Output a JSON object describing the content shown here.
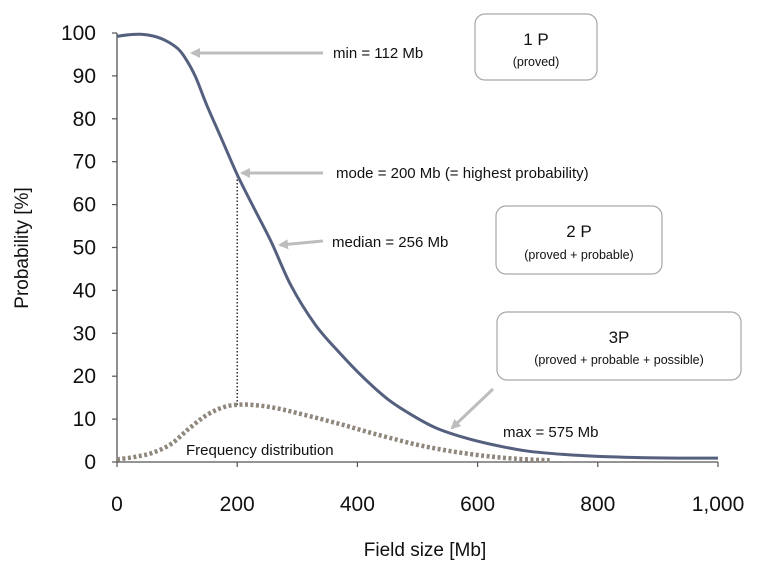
{
  "chart_data": {
    "type": "line",
    "xlabel": "Field size [Mb]",
    "ylabel": "Probability [%]",
    "xlim": [
      0,
      1000
    ],
    "ylim": [
      0,
      100
    ],
    "x_ticks": [
      "0",
      "200",
      "400",
      "600",
      "800",
      "1,000"
    ],
    "y_ticks": [
      "0",
      "10",
      "20",
      "30",
      "40",
      "50",
      "60",
      "70",
      "80",
      "90",
      "100"
    ],
    "grid": false,
    "series": [
      {
        "name": "",
        "style": "solid",
        "color": "#55607f",
        "x": [
          0,
          20,
          40,
          60,
          80,
          100,
          112,
          130,
          150,
          175,
          200,
          225,
          256,
          290,
          330,
          370,
          410,
          450,
          490,
          530,
          575,
          620,
          680,
          740,
          800,
          880,
          950,
          1000
        ],
        "y": [
          99.2,
          99.6,
          99.7,
          99.3,
          98.3,
          96.5,
          94.5,
          90,
          83,
          75,
          67,
          60,
          51.5,
          41,
          32,
          25.5,
          19.7,
          14.7,
          11,
          8,
          5.8,
          4.2,
          2.6,
          1.8,
          1.3,
          1,
          0.9,
          0.9
        ]
      },
      {
        "name": "Frequency distribution",
        "style": "dotted",
        "color": "#8f877c",
        "x": [
          0,
          30,
          60,
          90,
          120,
          150,
          180,
          210,
          240,
          270,
          300,
          340,
          380,
          420,
          460,
          500,
          540,
          580,
          620,
          660,
          700,
          720
        ],
        "y": [
          0.6,
          1.2,
          2.2,
          4.2,
          7.8,
          11,
          12.9,
          13.4,
          13.1,
          12.4,
          11.4,
          10,
          8.5,
          6.9,
          5.4,
          4,
          2.9,
          2,
          1.3,
          0.8,
          0.5,
          0.4
        ]
      }
    ],
    "mode_line": {
      "x": 200,
      "y_from": 13.3,
      "y_to": 67
    },
    "annotations": [
      {
        "text": "min = 112 Mb",
        "x": 112,
        "y": 94.5
      },
      {
        "text": "mode = 200 Mb (= highest probability)",
        "x": 200,
        "y": 67
      },
      {
        "text": "median = 256 Mb",
        "x": 256,
        "y": 51.5
      },
      {
        "text": "max = 575 Mb",
        "x": 575,
        "y": 5.8
      },
      {
        "text": "Frequency distribution"
      }
    ],
    "boxes": [
      {
        "title": "1 P",
        "subtitle": "(proved)"
      },
      {
        "title": "2 P",
        "subtitle": "(proved + probable)"
      },
      {
        "title": "3P",
        "subtitle": "(proved + probable + possible)"
      }
    ]
  }
}
